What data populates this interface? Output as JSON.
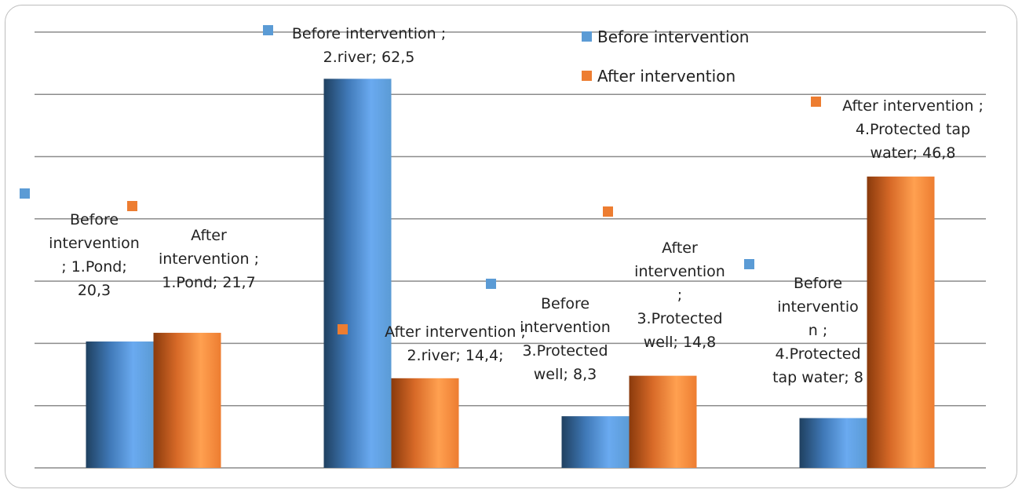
{
  "chart_data": {
    "type": "bar",
    "categories": [
      "1.Pond",
      "2.river",
      "3.Protected well",
      "4.Protected tap water"
    ],
    "series": [
      {
        "name": "Before intervention",
        "values": [
          20.3,
          62.5,
          8.3,
          8
        ],
        "color": "#5b9bd5"
      },
      {
        "name": "After intervention",
        "values": [
          21.7,
          14.4,
          14.8,
          46.8
        ],
        "color": "#ed7d31"
      }
    ],
    "ylim": [
      0,
      70
    ],
    "grid": true,
    "legend_position": "top-right",
    "data_labels": [
      {
        "series": 0,
        "index": 0,
        "lines": [
          "Before",
          "intervention",
          "; 1.Pond;",
          "20,3"
        ]
      },
      {
        "series": 1,
        "index": 0,
        "lines": [
          "After",
          "intervention ;",
          "1.Pond; 21,7"
        ]
      },
      {
        "series": 0,
        "index": 1,
        "lines": [
          "Before intervention ;",
          "2.river; 62,5"
        ]
      },
      {
        "series": 1,
        "index": 1,
        "lines": [
          "After intervention ;",
          "2.river; 14,4;"
        ]
      },
      {
        "series": 0,
        "index": 2,
        "lines": [
          "Before",
          "intervention",
          "3.Protected",
          "well; 8,3"
        ]
      },
      {
        "series": 1,
        "index": 2,
        "lines": [
          "After",
          "intervention",
          ";",
          "3.Protected",
          "well; 14,8"
        ]
      },
      {
        "series": 0,
        "index": 3,
        "lines": [
          "Before",
          "interventio",
          "n ;",
          "4.Protected",
          "tap water; 8"
        ]
      },
      {
        "series": 1,
        "index": 3,
        "lines": [
          "After intervention ;",
          "4.Protected tap",
          "water; 46,8"
        ]
      }
    ]
  }
}
